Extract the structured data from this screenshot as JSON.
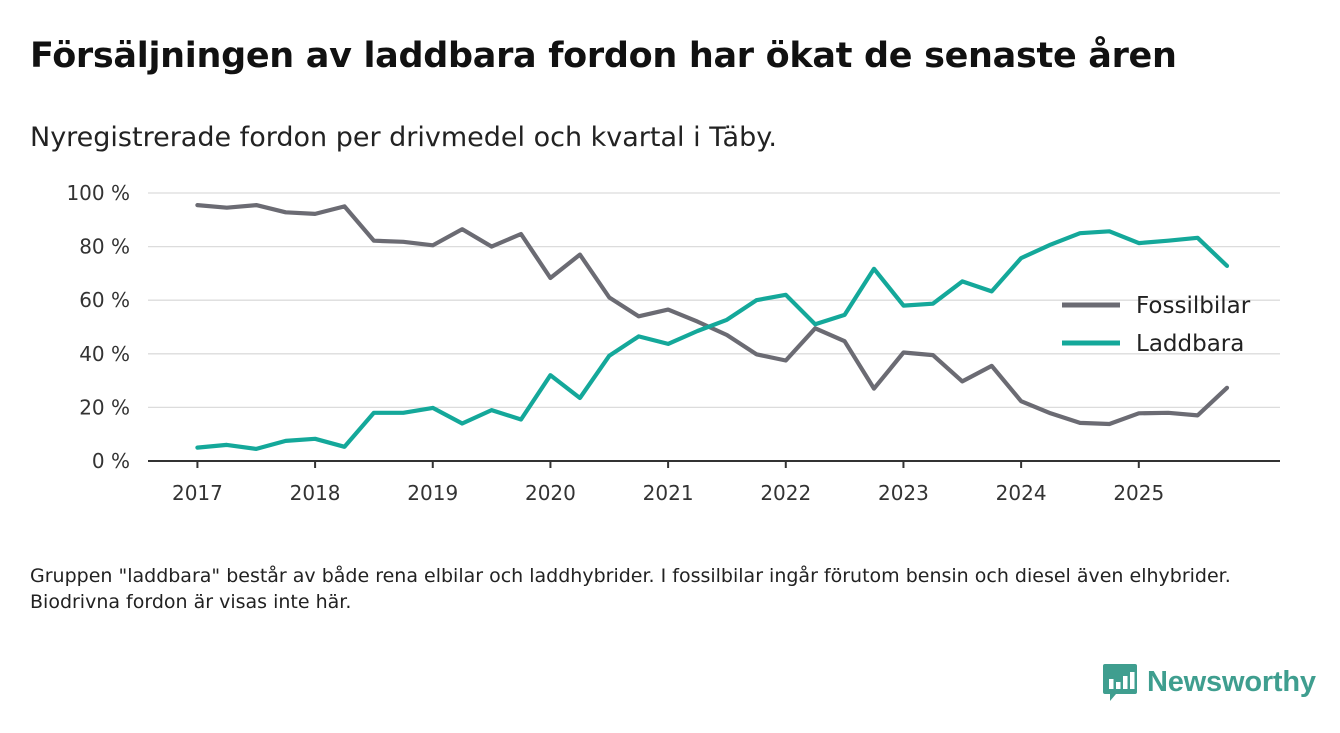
{
  "title": "Försäljningen av laddbara fordon har ökat de senaste åren",
  "subtitle": "Nyregistrerade fordon per drivmedel och kvartal i Täby.",
  "note": "Gruppen \"laddbara\" består av både rena elbilar och laddhybrider. I fossilbilar ingår förutom bensin och diesel även elhybrider. Biodrivna fordon är visas inte här.",
  "logo": {
    "text": "Newsworthy",
    "icon": "newsworthy-logo-icon",
    "color": "#3f9e8f"
  },
  "chart_data": {
    "type": "line",
    "x": [
      2017.0,
      2017.25,
      2017.5,
      2017.75,
      2018.0,
      2018.25,
      2018.5,
      2018.75,
      2019.0,
      2019.25,
      2019.5,
      2019.75,
      2020.0,
      2020.25,
      2020.5,
      2020.75,
      2021.0,
      2021.25,
      2021.5,
      2021.75,
      2022.0,
      2022.25,
      2022.5,
      2022.75,
      2023.0,
      2023.25,
      2023.5,
      2023.75,
      2024.0,
      2024.25,
      2024.5,
      2024.75,
      2025.0,
      2025.25,
      2025.5,
      2025.75
    ],
    "series": [
      {
        "name": "Fossilbilar",
        "color": "#6b6b73",
        "values": [
          95.5,
          94.5,
          95.5,
          92.8,
          92.2,
          95.0,
          82.2,
          81.8,
          80.5,
          86.5,
          80.0,
          84.7,
          68.3,
          77.0,
          61.0,
          54.0,
          56.5,
          52.0,
          47.0,
          39.8,
          37.5,
          49.5,
          44.7,
          27.0,
          40.5,
          39.5,
          29.7,
          35.5,
          22.3,
          17.8,
          14.2,
          13.8,
          17.8,
          18.0,
          17.0,
          27.3
        ]
      },
      {
        "name": "Laddbara",
        "color": "#14a89a",
        "values": [
          5.0,
          6.0,
          4.5,
          7.5,
          8.3,
          5.3,
          18.0,
          18.0,
          19.8,
          14.0,
          19.0,
          15.5,
          32.0,
          23.5,
          39.3,
          46.5,
          43.7,
          48.5,
          52.7,
          60.0,
          62.0,
          51.0,
          54.5,
          71.7,
          58.0,
          58.7,
          67.0,
          63.3,
          75.7,
          80.7,
          85.0,
          85.7,
          81.3,
          82.2,
          83.3,
          72.8
        ]
      }
    ],
    "xticks": [
      2017,
      2018,
      2019,
      2020,
      2021,
      2022,
      2023,
      2024,
      2025
    ],
    "xtick_labels": [
      "2017",
      "2018",
      "2019",
      "2020",
      "2021",
      "2022",
      "2023",
      "2024",
      "2025"
    ],
    "yticks": [
      0,
      20,
      40,
      60,
      80,
      100
    ],
    "ytick_labels": [
      "0 %",
      "20 %",
      "40 %",
      "60 %",
      "80 %",
      "100 %"
    ],
    "ylim": [
      0,
      100
    ],
    "xlim": [
      2016.58,
      2026.2
    ],
    "xlabel": "",
    "ylabel": "",
    "grid": true,
    "legend": "right"
  }
}
